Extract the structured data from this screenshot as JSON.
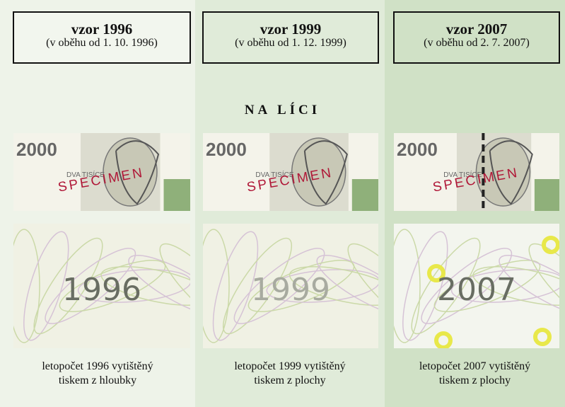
{
  "heading": "NA LÍCI",
  "columns": [
    {
      "title": "vzor 1996",
      "subtitle": "(v oběhu od 1. 10. 1996)",
      "denomination": "2000",
      "denomination_words": "DVA TISÍCE",
      "stamp": "SPECIMEN",
      "year": "1996",
      "caption": [
        "letopočet 1996 vytištěný",
        "tiskem z hloubky"
      ]
    },
    {
      "title": "vzor 1999",
      "subtitle": "(v oběhu od 1. 12. 1999)",
      "denomination": "2000",
      "denomination_words": "DVA TISÍCE",
      "stamp": "SPECIMEN",
      "year": "1999",
      "caption": [
        "letopočet 1999 vytištěný",
        "tiskem z plochy"
      ]
    },
    {
      "title": "vzor 2007",
      "subtitle": "(v oběhu od 2. 7. 2007)",
      "denomination": "2000",
      "denomination_words": "DVA TISÍCE",
      "stamp": "SPECIMEN",
      "year": "2007",
      "caption": [
        "letopočet 2007 vytištěný",
        "tiskem z plochy"
      ]
    }
  ]
}
